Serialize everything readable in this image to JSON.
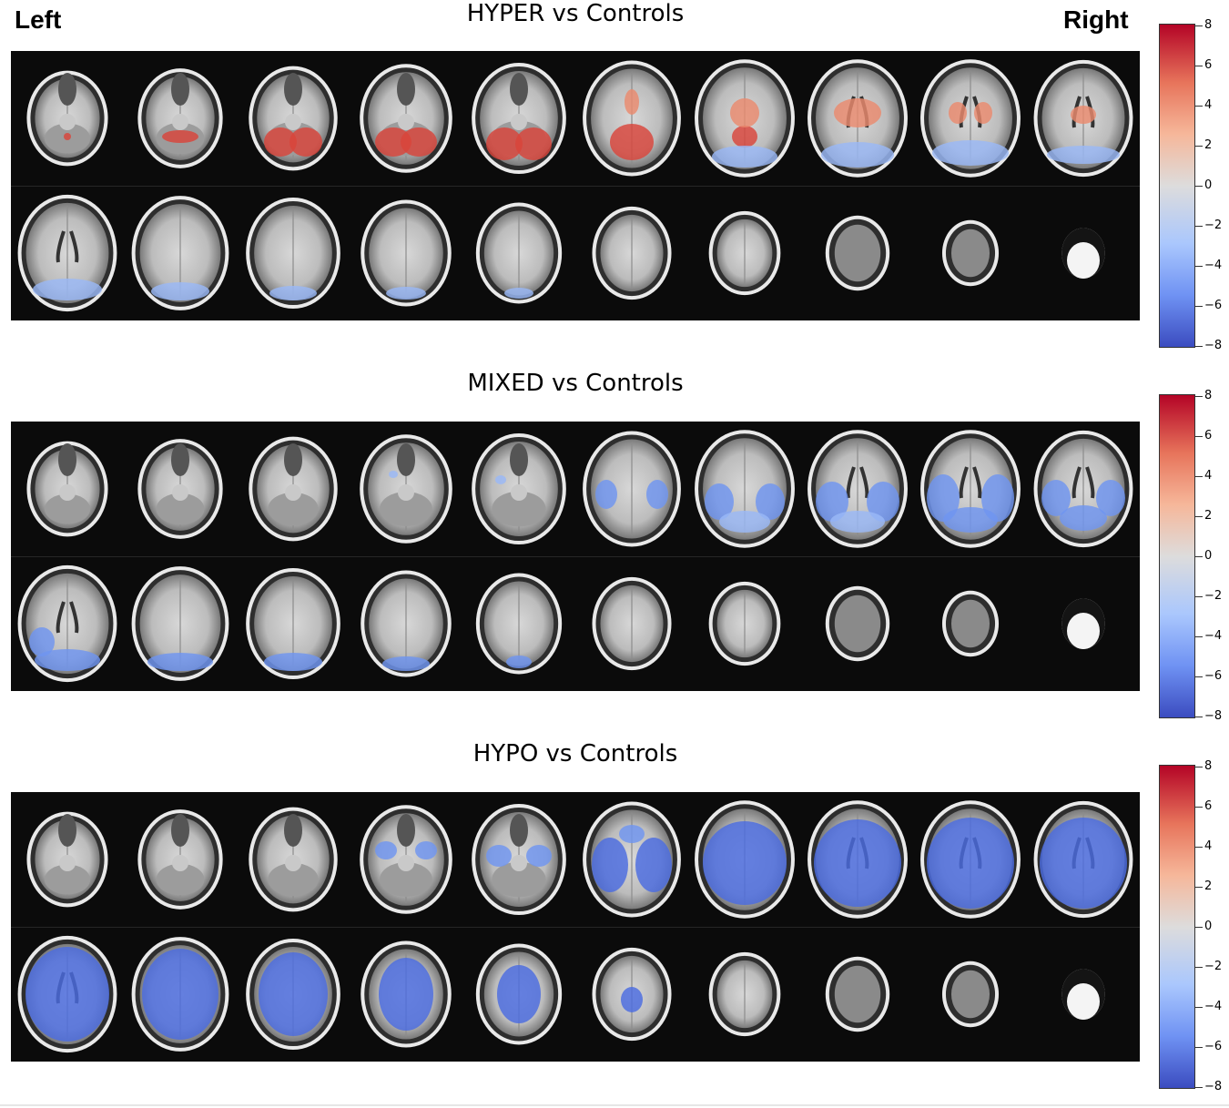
{
  "orientation": {
    "left": "Left",
    "right": "Right"
  },
  "panels": [
    {
      "title": "HYPER vs Controls"
    },
    {
      "title": "MIXED vs Controls"
    },
    {
      "title": "HYPO vs Controls"
    }
  ],
  "colorbar": {
    "ticks": [
      "8",
      "6",
      "4",
      "2",
      "0",
      "−2",
      "−4",
      "−6",
      "−8"
    ],
    "colormap": [
      "#3b4cc0",
      "#6f92f3",
      "#aac7fd",
      "#dddcdc",
      "#f6b79a",
      "#e7745b",
      "#b40426"
    ]
  }
}
